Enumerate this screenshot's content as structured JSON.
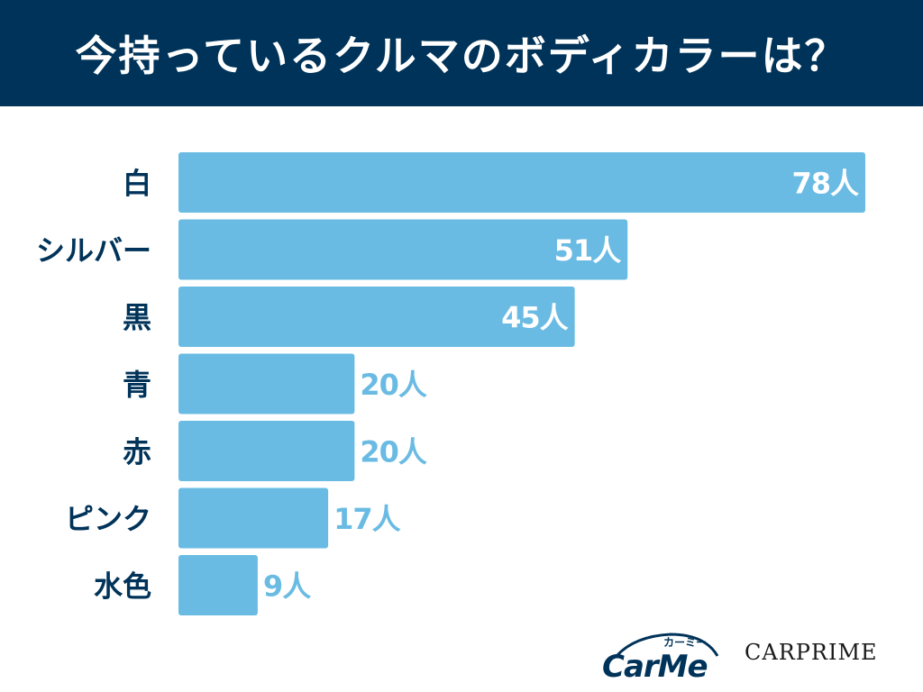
{
  "header": {
    "title": "今持っているクルマのボディカラーは？"
  },
  "chart_data": {
    "type": "bar",
    "orientation": "horizontal",
    "title": "今持っているクルマのボディカラーは？",
    "categories": [
      "白",
      "シルバー",
      "黒",
      "青",
      "赤",
      "ピンク",
      "水色"
    ],
    "values": [
      78,
      51,
      45,
      20,
      20,
      17,
      9
    ],
    "value_labels": [
      "78人",
      "51人",
      "45人",
      "20人",
      "20人",
      "17人",
      "9人"
    ],
    "unit": "人",
    "xlim": [
      0,
      78
    ],
    "grid": false,
    "legend": "none",
    "bar_color": "#6abbe3",
    "label_color": "#003359",
    "inside_label_color": "#ffffff"
  },
  "logos": {
    "carme_word": "CarMe",
    "carme_kana": "カーミー",
    "carprime": "CARPRIME"
  },
  "colors": {
    "header_bg": "#003359",
    "brand_dark": "#003359"
  }
}
